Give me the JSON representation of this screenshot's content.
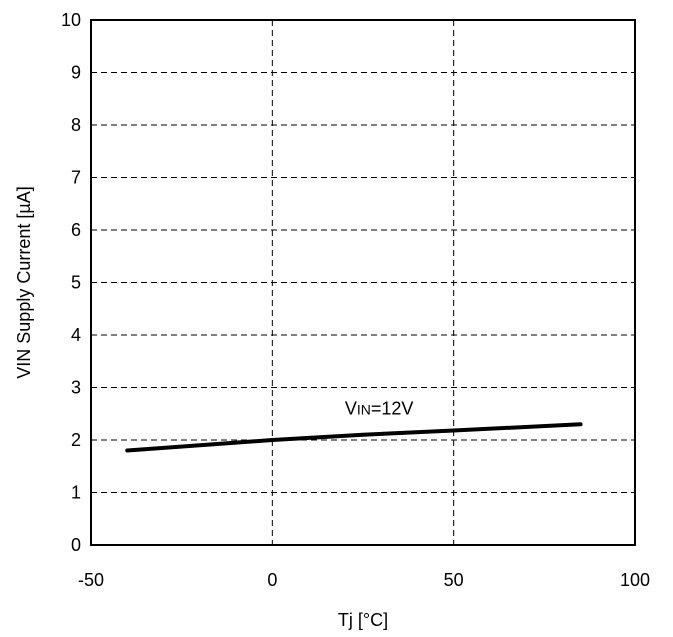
{
  "chart_data": {
    "type": "line",
    "xlabel": "Tj [°C]",
    "ylabel": "VIN Supply Current [µA]",
    "xlim": [
      -50,
      100
    ],
    "ylim": [
      0,
      10
    ],
    "xticks": [
      -50,
      0,
      50,
      100
    ],
    "yticks": [
      0,
      1,
      2,
      3,
      4,
      5,
      6,
      7,
      8,
      9,
      10
    ],
    "x_tick_labels": [
      "-50",
      "0",
      "50",
      "100"
    ],
    "y_tick_labels": [
      "0",
      "1",
      "2",
      "3",
      "4",
      "5",
      "6",
      "7",
      "8",
      "9",
      "10"
    ],
    "grid": true,
    "series": [
      {
        "x": [
          -40,
          -20,
          0,
          25,
          50,
          85
        ],
        "values": [
          1.8,
          1.9,
          2.0,
          2.1,
          2.18,
          2.3
        ]
      }
    ],
    "annotations": [
      {
        "text_main": "V",
        "text_sub": "IN",
        "text_rest": "=12V",
        "x": 20,
        "y": 2.6
      }
    ],
    "colors": {
      "line": "#000000",
      "grid": "#000000",
      "background": "#ffffff"
    }
  }
}
